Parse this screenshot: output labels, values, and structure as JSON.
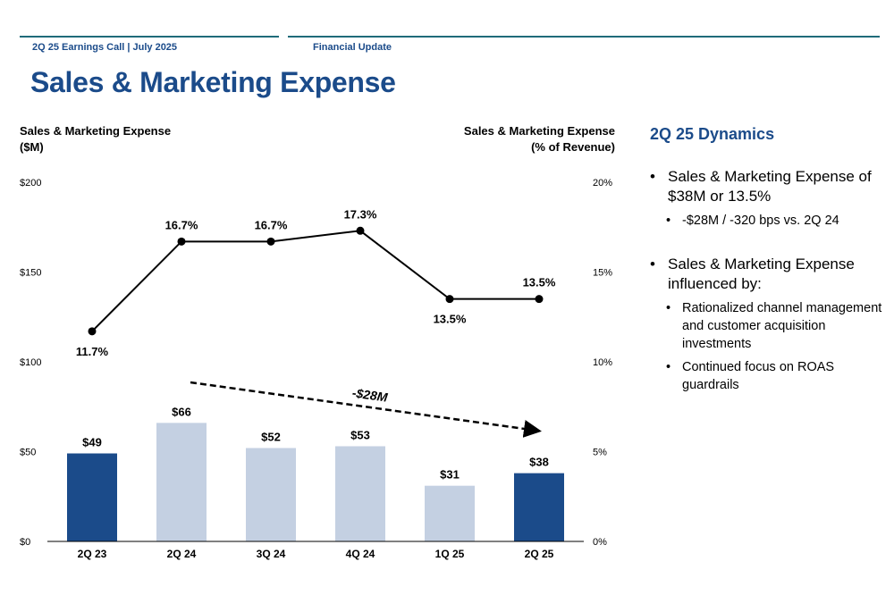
{
  "header": {
    "event": "2Q 25 Earnings Call | July 2025",
    "section": "Financial Update"
  },
  "page_title": "Sales & Marketing Expense",
  "colors": {
    "brand": "#1b4b8a",
    "bar_highlight": "#1b4b8a",
    "bar_muted": "#c4d0e2",
    "line": "#000000"
  },
  "chart_data": {
    "type": "bar",
    "categories": [
      "2Q 23",
      "2Q 24",
      "3Q 24",
      "4Q 24",
      "1Q 25",
      "2Q 25"
    ],
    "series": [
      {
        "type": "bar",
        "axis": "left",
        "values": [
          49,
          66,
          52,
          53,
          31,
          38
        ],
        "labels": [
          "$49",
          "$66",
          "$52",
          "$53",
          "$31",
          "$38"
        ],
        "highlight": [
          true,
          false,
          false,
          false,
          false,
          true
        ]
      },
      {
        "type": "line",
        "axis": "right",
        "values": [
          11.7,
          16.7,
          16.7,
          17.3,
          13.5,
          13.5
        ],
        "labels": [
          "11.7%",
          "16.7%",
          "16.7%",
          "17.3%",
          "13.5%",
          "13.5%"
        ]
      }
    ],
    "left_axis": {
      "title_line1": "Sales & Marketing Expense",
      "title_line2": "($M)",
      "ylim": [
        0,
        200
      ],
      "ticks": [
        "$0",
        "$50",
        "$100",
        "$150",
        "$200"
      ]
    },
    "right_axis": {
      "title_line1": "Sales & Marketing Expense",
      "title_line2": "(% of Revenue)",
      "ylim": [
        0,
        20
      ],
      "ticks": [
        "0%",
        "5%",
        "10%",
        "15%",
        "20%"
      ]
    },
    "annotation": {
      "text": "-$28M",
      "from_category": "2Q 24",
      "to_category": "2Q 25"
    },
    "grid": false,
    "legend": "none"
  },
  "panel": {
    "title": "2Q 25 Dynamics",
    "bullets": [
      {
        "text": "Sales & Marketing Expense of $38M or 13.5%",
        "subs": [
          "-$28M / -320 bps vs. 2Q 24"
        ]
      },
      {
        "text": "Sales & Marketing Expense influenced by:",
        "subs": [
          "Rationalized channel management and customer acquisition investments",
          "Continued focus on ROAS guardrails"
        ]
      }
    ]
  }
}
